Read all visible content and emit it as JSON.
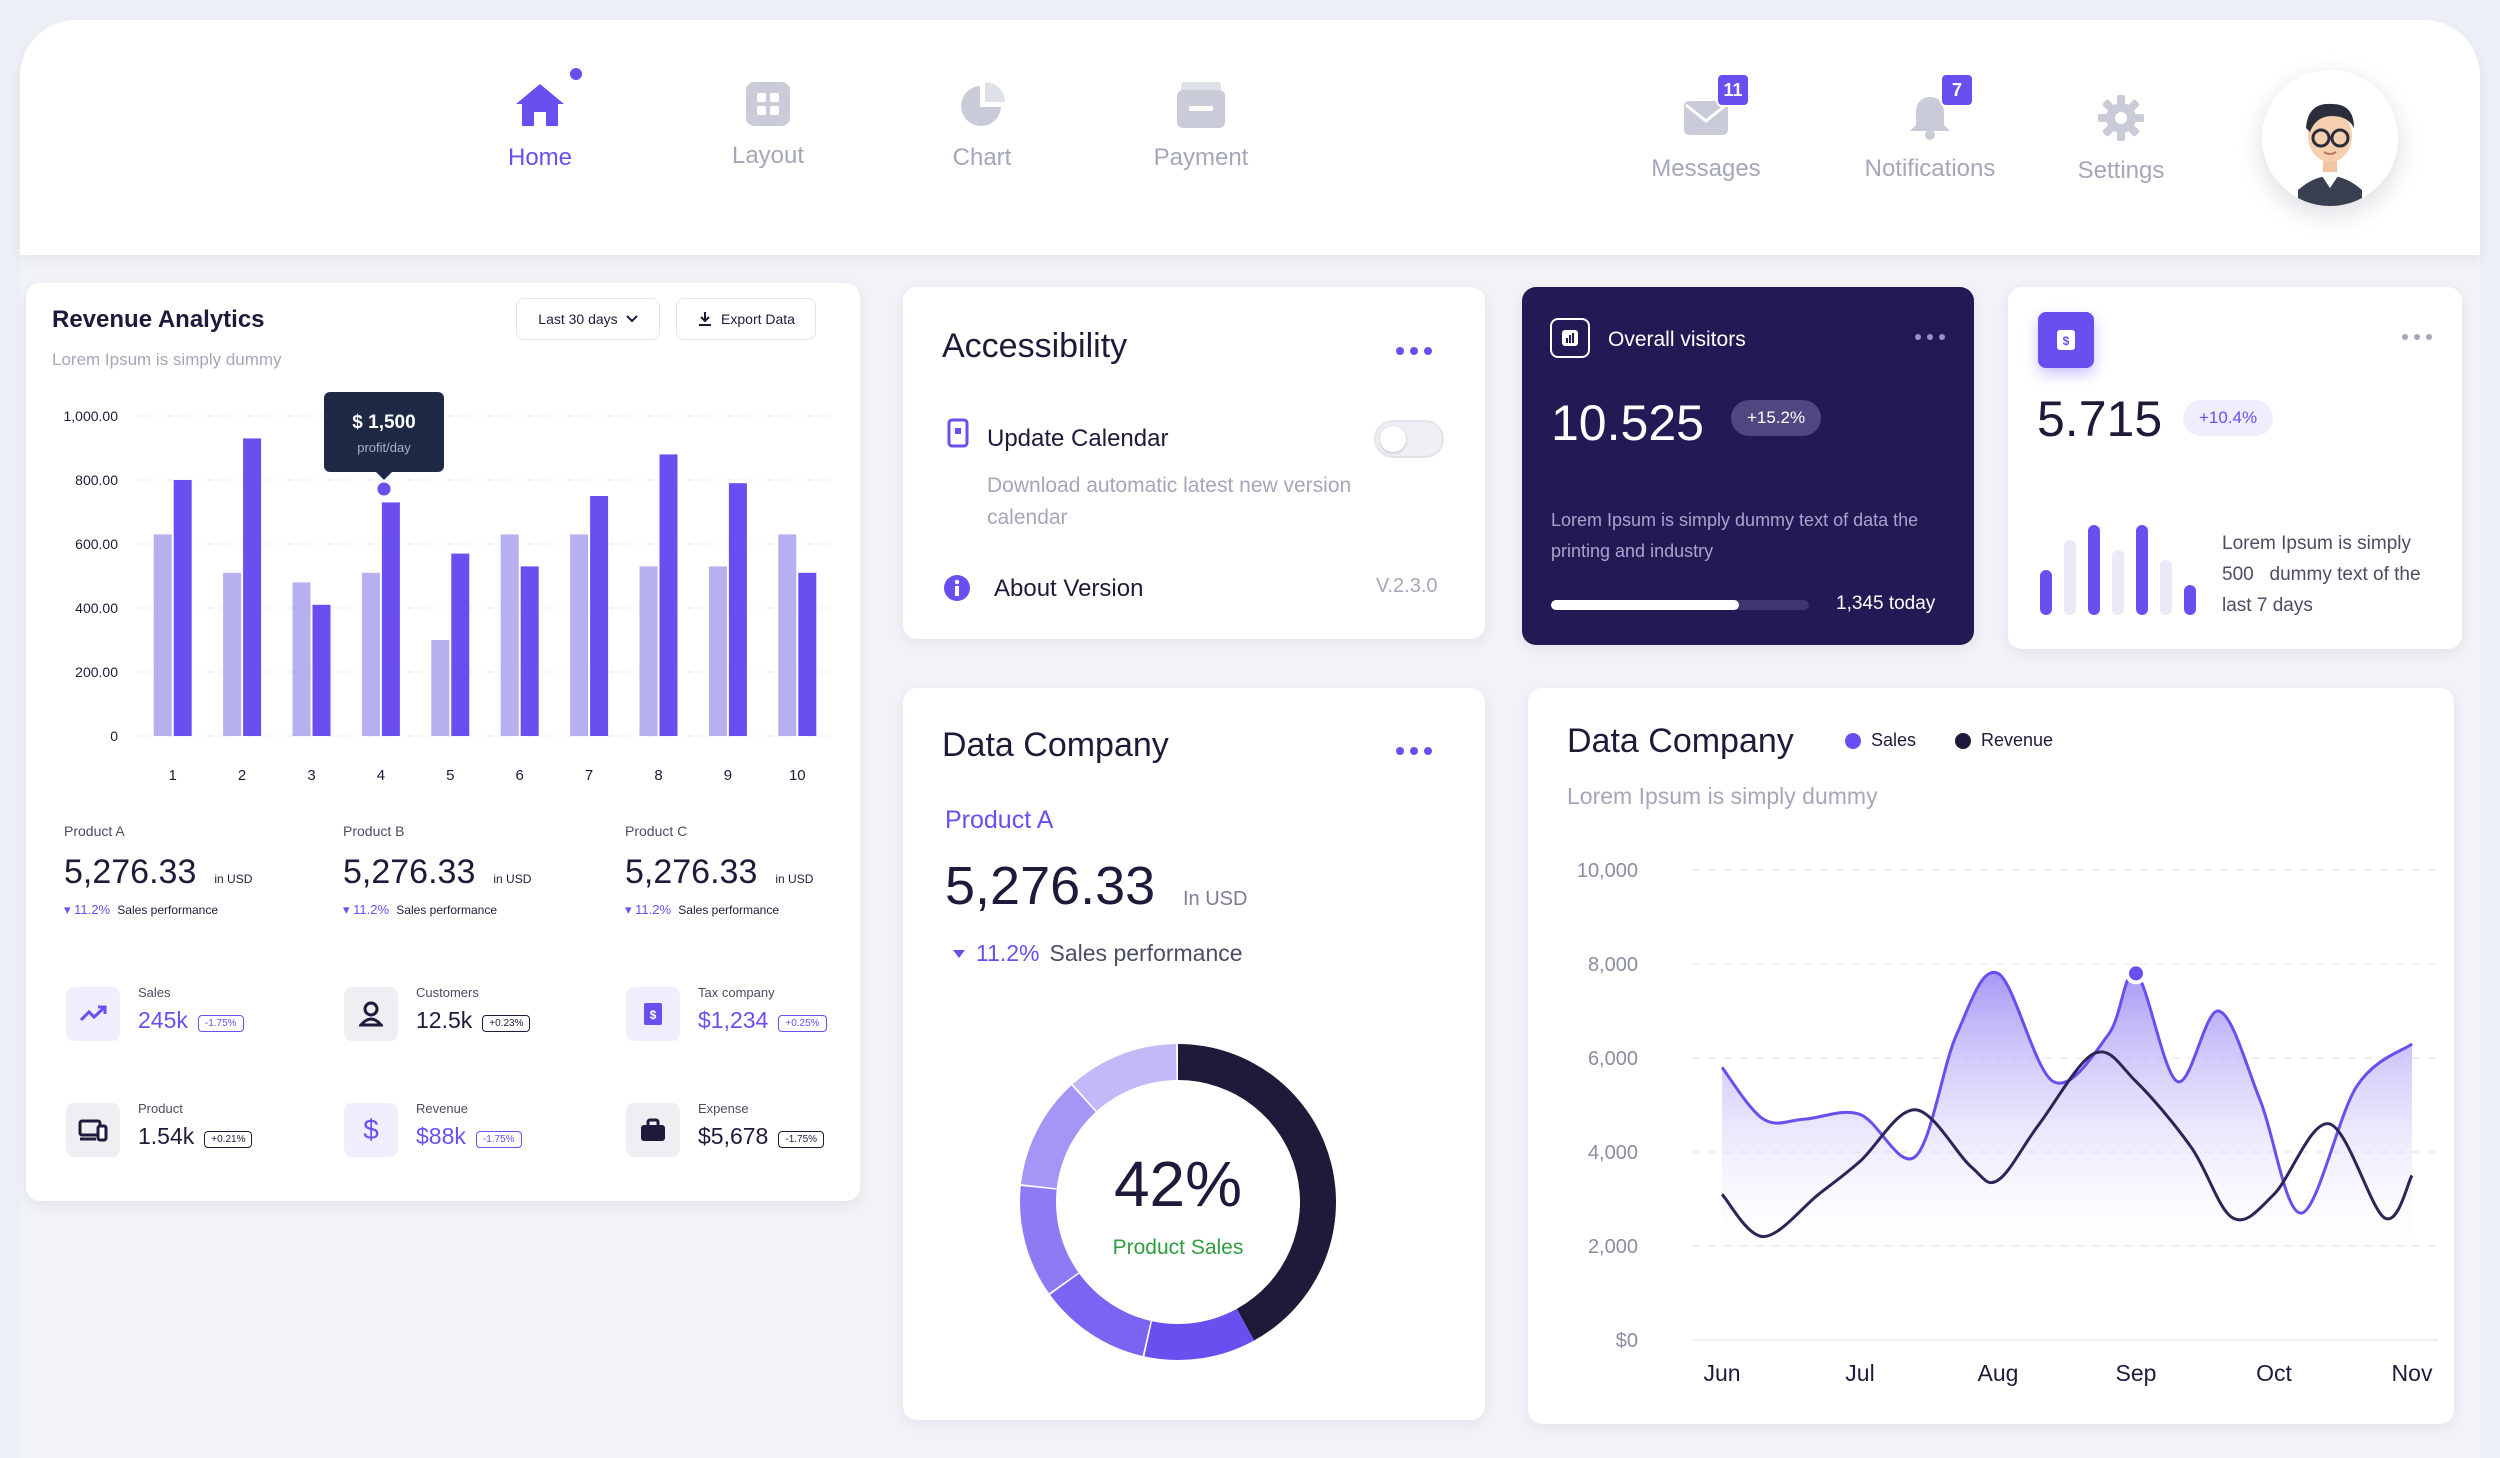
{
  "nav": {
    "home": "Home",
    "layout": "Layout",
    "chart": "Chart",
    "payment": "Payment",
    "messages": "Messages",
    "messages_badge": "11",
    "notifications": "Notifications",
    "notifications_badge": "7",
    "settings": "Settings"
  },
  "revenue": {
    "title": "Revenue Analytics",
    "subtitle": "Lorem Ipsum is simply dummy",
    "range_select": "Last 30 days",
    "export": "Export Data",
    "tooltip_value": "$ 1,500",
    "tooltip_label": "profit/day",
    "products": [
      {
        "name": "Product A",
        "value": "5,276.33",
        "unit": "in USD",
        "change": "11.2%",
        "change_label": "Sales performance"
      },
      {
        "name": "Product B",
        "value": "5,276.33",
        "unit": "in USD",
        "change": "11.2%",
        "change_label": "Sales performance"
      },
      {
        "name": "Product C",
        "value": "5,276.33",
        "unit": "in USD",
        "change": "11.2%",
        "change_label": "Sales performance"
      }
    ],
    "stats": [
      {
        "label": "Sales",
        "value": "245k",
        "chip": "-1.75%",
        "icon": "trend-up-icon"
      },
      {
        "label": "Customers",
        "value": "12.5k",
        "chip": "+0.23%",
        "icon": "user-icon"
      },
      {
        "label": "Tax company",
        "value": "$1,234",
        "chip": "+0.25%",
        "icon": "receipt-icon"
      },
      {
        "label": "Product",
        "value": "1.54k",
        "chip": "+0.21%",
        "icon": "devices-icon"
      },
      {
        "label": "Revenue",
        "value": "$88k",
        "chip": "-1.75%",
        "icon": "dollar-icon"
      },
      {
        "label": "Expense",
        "value": "$5,678",
        "chip": "-1.75%",
        "icon": "briefcase-icon"
      }
    ]
  },
  "accessibility": {
    "title": "Accessibility",
    "update_title": "Update Calendar",
    "update_desc": "Download automatic latest new version calendar",
    "about": "About Version",
    "version": "V.2.3.0"
  },
  "visitors": {
    "title": "Overall visitors",
    "value": "10.525",
    "change": "+15.2%",
    "desc": "Lorem Ipsum is simply dummy text of data the printing and industry",
    "progress": 0.73,
    "today": "1,345 today"
  },
  "mini": {
    "value": "5.715",
    "change": "+10.4%",
    "desc_line1": "Lorem Ipsum is simply",
    "desc_num": "500",
    "desc_line2": "dummy text of the",
    "desc_line3": "last 7 days",
    "bars": [
      0.45,
      0.75,
      0.9,
      0.65,
      0.9,
      0.55,
      0.3
    ],
    "bar_colors": [
      "#6b4ef0",
      "#ebe8f8",
      "#6b4ef0",
      "#ebe8f8",
      "#6b4ef0",
      "#ebe8f8",
      "#6b4ef0"
    ]
  },
  "company": {
    "title": "Data Company",
    "product": "Product A",
    "value": "5,276.33",
    "unit": "In USD",
    "change": "11.2%",
    "change_label": "Sales performance",
    "donut_value": "42%",
    "donut_label": "Product Sales"
  },
  "company2": {
    "title": "Data Company",
    "subtitle": "Lorem Ipsum is simply dummy",
    "legend_sales": "Sales",
    "legend_revenue": "Revenue"
  },
  "chart_data": [
    {
      "type": "bar",
      "categories": [
        "1",
        "2",
        "3",
        "4",
        "5",
        "6",
        "7",
        "8",
        "9",
        "10"
      ],
      "series": [
        {
          "values": [
            630,
            510,
            480,
            510,
            300,
            630,
            630,
            530,
            530,
            630
          ]
        },
        {
          "values": [
            800,
            930,
            410,
            730,
            570,
            530,
            750,
            880,
            790,
            510
          ]
        }
      ],
      "yticks": [
        "0",
        "200.00",
        "400.00",
        "600.00",
        "800.00",
        "1,000.00"
      ],
      "ylim": [
        0,
        1000
      ],
      "colors": [
        "#b7b0f0",
        "#6b4ef0"
      ]
    },
    {
      "type": "line",
      "categories": [
        "Jun",
        "Jul",
        "Aug",
        "Sep",
        "Oct",
        "Nov"
      ],
      "yticks": [
        "$0",
        "2,000",
        "4,000",
        "6,000",
        "8,000",
        "10,000"
      ],
      "ylim": [
        0,
        10000
      ],
      "series": [
        {
          "name": "Sales",
          "x": [
            0,
            0.3,
            0.6,
            1,
            1.4,
            1.7,
            2,
            2.4,
            2.8,
            3,
            3.3,
            3.6,
            3.9,
            4.2,
            4.6,
            5
          ],
          "y": [
            5800,
            4700,
            4700,
            4800,
            3900,
            6500,
            7800,
            5500,
            6500,
            7800,
            5500,
            7000,
            5100,
            2700,
            5400,
            6300
          ]
        },
        {
          "name": "Revenue",
          "x": [
            0,
            0.3,
            0.7,
            1,
            1.4,
            1.8,
            2,
            2.3,
            2.7,
            3,
            3.4,
            3.7,
            4,
            4.4,
            4.8,
            5
          ],
          "y": [
            3100,
            2200,
            3100,
            3800,
            4900,
            3700,
            3400,
            4600,
            6100,
            5500,
            4100,
            2600,
            3100,
            4600,
            2600,
            3500
          ]
        }
      ],
      "colors": [
        "#6b4ef0",
        "#2c2556"
      ]
    },
    {
      "type": "pie",
      "values": [
        42,
        58
      ],
      "colors": [
        "#1e1b3a",
        "#6b4ef0"
      ]
    }
  ]
}
